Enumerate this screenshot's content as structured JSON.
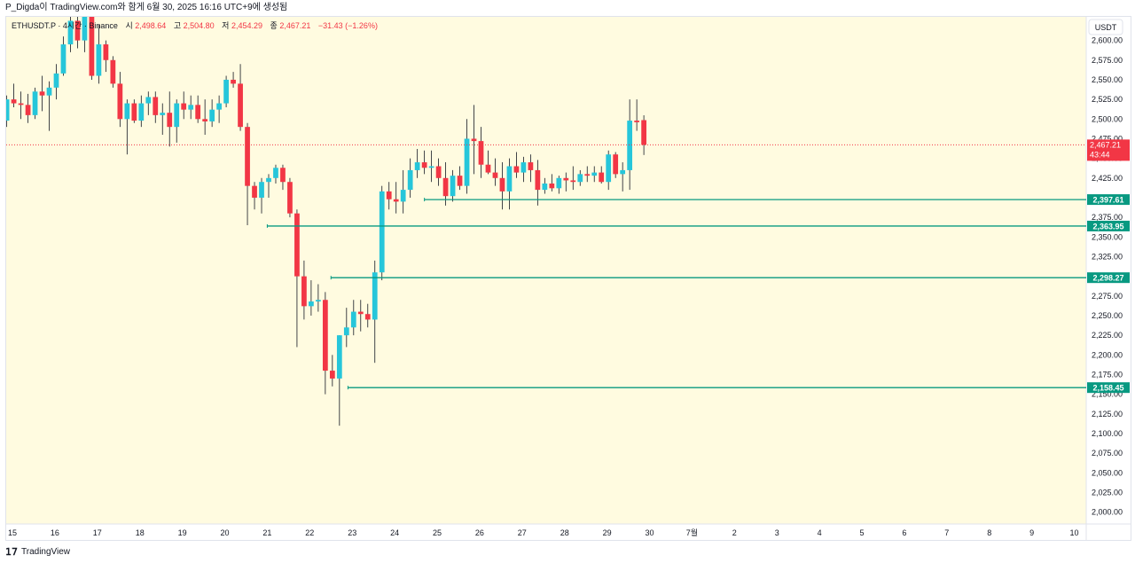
{
  "header": {
    "publish_line": "P_Digda이 TradingView.com와 함게 6월 30, 2025 16:16 UTC+9에 생성됨"
  },
  "legend": {
    "symbol": "ETHUSDT.P · 4시간 · Binance",
    "open_label": "시",
    "open": "2,498.64",
    "high_label": "고",
    "high": "2,504.80",
    "low_label": "저",
    "low": "2,454.29",
    "close_label": "종",
    "close": "2,467.21",
    "change": "−31.43 (−1.26%)"
  },
  "price_axis": {
    "currency": "USDT",
    "ticks": [
      "2,600.00",
      "2,575.00",
      "2,550.00",
      "2,525.00",
      "2,500.00",
      "2,475.00",
      "2,450.00",
      "2,425.00",
      "2,400.00",
      "2,375.00",
      "2,350.00",
      "2,325.00",
      "2,300.00",
      "2,275.00",
      "2,250.00",
      "2,225.00",
      "2,200.00",
      "2,175.00",
      "2,150.00",
      "2,125.00",
      "2,100.00",
      "2,075.00",
      "2,050.00",
      "2,025.00",
      "2,000.00"
    ],
    "current_price": "2,467.21",
    "countdown": "43:44"
  },
  "time_axis": {
    "labels": [
      "15",
      "16",
      "17",
      "18",
      "19",
      "20",
      "21",
      "22",
      "23",
      "24",
      "25",
      "26",
      "27",
      "28",
      "29",
      "30",
      "7월",
      "2",
      "3",
      "4",
      "5",
      "6",
      "7",
      "8",
      "9",
      "10"
    ]
  },
  "levels": [
    {
      "price": 2397.61,
      "label": "2,397.61",
      "start_day": 24.7
    },
    {
      "price": 2363.95,
      "label": "2,363.95",
      "start_day": 21.0
    },
    {
      "price": 2298.27,
      "label": "2,298.27",
      "start_day": 22.5
    },
    {
      "price": 2158.45,
      "label": "2,158.45",
      "start_day": 22.9
    }
  ],
  "colors": {
    "background": "#fffbe0",
    "up": "#26c6da",
    "down": "#f23645",
    "level": "#089981",
    "grid_text": "#131722"
  },
  "chart_data": {
    "type": "candlestick",
    "title": "ETHUSDT.P · 4시간 · Binance",
    "xlabel": "",
    "ylabel": "USDT",
    "ylim": [
      1985,
      2630
    ],
    "x_start_day": 14.7,
    "candle_hours": 4,
    "ohlc": [
      [
        2513,
        2528,
        2488,
        2498
      ],
      [
        2498,
        2530,
        2490,
        2525
      ],
      [
        2525,
        2545,
        2515,
        2520
      ],
      [
        2520,
        2535,
        2500,
        2518
      ],
      [
        2518,
        2532,
        2495,
        2505
      ],
      [
        2505,
        2540,
        2500,
        2535
      ],
      [
        2535,
        2555,
        2510,
        2530
      ],
      [
        2530,
        2548,
        2485,
        2540
      ],
      [
        2540,
        2570,
        2525,
        2558
      ],
      [
        2558,
        2605,
        2555,
        2595
      ],
      [
        2595,
        2640,
        2585,
        2625
      ],
      [
        2625,
        2645,
        2590,
        2600
      ],
      [
        2600,
        2648,
        2585,
        2630
      ],
      [
        2630,
        2645,
        2550,
        2555
      ],
      [
        2555,
        2620,
        2545,
        2595
      ],
      [
        2595,
        2600,
        2560,
        2575
      ],
      [
        2575,
        2580,
        2540,
        2545
      ],
      [
        2545,
        2560,
        2490,
        2500
      ],
      [
        2500,
        2525,
        2455,
        2520
      ],
      [
        2520,
        2525,
        2495,
        2498
      ],
      [
        2498,
        2530,
        2490,
        2520
      ],
      [
        2520,
        2535,
        2505,
        2528
      ],
      [
        2528,
        2535,
        2495,
        2505
      ],
      [
        2505,
        2520,
        2480,
        2508
      ],
      [
        2508,
        2535,
        2465,
        2490
      ],
      [
        2490,
        2525,
        2470,
        2520
      ],
      [
        2520,
        2535,
        2500,
        2512
      ],
      [
        2512,
        2530,
        2500,
        2518
      ],
      [
        2518,
        2530,
        2495,
        2500
      ],
      [
        2500,
        2525,
        2480,
        2497
      ],
      [
        2497,
        2525,
        2490,
        2512
      ],
      [
        2512,
        2530,
        2495,
        2520
      ],
      [
        2520,
        2555,
        2515,
        2550
      ],
      [
        2550,
        2560,
        2540,
        2545
      ],
      [
        2545,
        2570,
        2485,
        2490
      ],
      [
        2490,
        2495,
        2365,
        2415
      ],
      [
        2415,
        2420,
        2385,
        2400
      ],
      [
        2400,
        2425,
        2380,
        2420
      ],
      [
        2420,
        2430,
        2400,
        2425
      ],
      [
        2425,
        2442,
        2418,
        2438
      ],
      [
        2438,
        2442,
        2410,
        2420
      ],
      [
        2420,
        2425,
        2375,
        2380
      ],
      [
        2380,
        2385,
        2210,
        2300
      ],
      [
        2300,
        2320,
        2245,
        2262
      ],
      [
        2262,
        2295,
        2250,
        2268
      ],
      [
        2268,
        2290,
        2255,
        2270
      ],
      [
        2270,
        2280,
        2150,
        2180
      ],
      [
        2180,
        2200,
        2160,
        2170
      ],
      [
        2170,
        2225,
        2110,
        2225
      ],
      [
        2225,
        2260,
        2210,
        2235
      ],
      [
        2235,
        2270,
        2225,
        2255
      ],
      [
        2255,
        2270,
        2230,
        2252
      ],
      [
        2252,
        2265,
        2235,
        2245
      ],
      [
        2245,
        2320,
        2190,
        2305
      ],
      [
        2305,
        2415,
        2295,
        2408
      ],
      [
        2408,
        2420,
        2385,
        2398
      ],
      [
        2398,
        2420,
        2380,
        2395
      ],
      [
        2395,
        2435,
        2380,
        2410
      ],
      [
        2410,
        2450,
        2400,
        2435
      ],
      [
        2435,
        2462,
        2425,
        2445
      ],
      [
        2445,
        2460,
        2430,
        2438
      ],
      [
        2438,
        2460,
        2420,
        2440
      ],
      [
        2440,
        2450,
        2415,
        2425
      ],
      [
        2425,
        2445,
        2390,
        2402
      ],
      [
        2402,
        2435,
        2395,
        2428
      ],
      [
        2428,
        2440,
        2410,
        2415
      ],
      [
        2415,
        2500,
        2405,
        2475
      ],
      [
        2475,
        2518,
        2430,
        2472
      ],
      [
        2472,
        2490,
        2425,
        2442
      ],
      [
        2442,
        2460,
        2430,
        2432
      ],
      [
        2432,
        2450,
        2415,
        2425
      ],
      [
        2425,
        2445,
        2385,
        2408
      ],
      [
        2408,
        2450,
        2385,
        2440
      ],
      [
        2440,
        2458,
        2425,
        2432
      ],
      [
        2432,
        2452,
        2420,
        2445
      ],
      [
        2445,
        2455,
        2420,
        2435
      ],
      [
        2435,
        2448,
        2390,
        2410
      ],
      [
        2410,
        2425,
        2405,
        2418
      ],
      [
        2418,
        2430,
        2408,
        2412
      ],
      [
        2412,
        2428,
        2405,
        2425
      ],
      [
        2425,
        2432,
        2408,
        2422
      ],
      [
        2422,
        2440,
        2410,
        2420
      ],
      [
        2420,
        2435,
        2415,
        2430
      ],
      [
        2430,
        2440,
        2420,
        2428
      ],
      [
        2428,
        2440,
        2420,
        2432
      ],
      [
        2432,
        2440,
        2418,
        2420
      ],
      [
        2420,
        2460,
        2410,
        2455
      ],
      [
        2455,
        2458,
        2425,
        2430
      ],
      [
        2430,
        2445,
        2408,
        2435
      ],
      [
        2435,
        2525,
        2410,
        2498
      ],
      [
        2498,
        2525,
        2485,
        2496
      ],
      [
        2498.64,
        2504.8,
        2454.29,
        2467.21
      ]
    ]
  }
}
